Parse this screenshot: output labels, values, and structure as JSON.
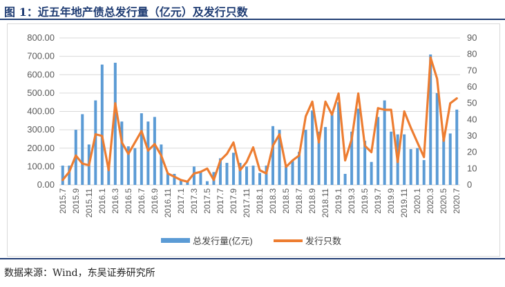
{
  "figure": {
    "title": "图 1：近五年地产债总发行量（亿元）及发行只数",
    "source": "数据来源：Wind，东吴证券研究所"
  },
  "colors": {
    "bar": "#5b9bd5",
    "line": "#ed7d31",
    "grid": "#d9d9d9",
    "axis_text": "#595959"
  },
  "chart_data": {
    "type": "bar+line",
    "title": "近五年地产债总发行量（亿元）及发行只数",
    "categories": [
      "2015.7",
      "2015.8",
      "2015.9",
      "2015.10",
      "2015.11",
      "2015.12",
      "2016.1",
      "2016.2",
      "2016.3",
      "2016.4",
      "2016.5",
      "2016.6",
      "2016.7",
      "2016.8",
      "2016.9",
      "2016.10",
      "2016.11",
      "2016.12",
      "2017.1",
      "2017.2",
      "2017.3",
      "2017.4",
      "2017.5",
      "2017.6",
      "2017.7",
      "2017.8",
      "2017.9",
      "2017.10",
      "2017.11",
      "2017.12",
      "2018.1",
      "2018.2",
      "2018.3",
      "2018.4",
      "2018.5",
      "2018.6",
      "2018.7",
      "2018.8",
      "2018.9",
      "2018.10",
      "2018.11",
      "2018.12",
      "2019.1",
      "2019.2",
      "2019.3",
      "2019.4",
      "2019.5",
      "2019.6",
      "2019.7",
      "2019.8",
      "2019.9",
      "2019.10",
      "2019.11",
      "2019.12",
      "2020.1",
      "2020.2",
      "2020.3",
      "2020.4",
      "2020.5",
      "2020.6",
      "2020.7"
    ],
    "x_tick_labels": [
      "2015.7",
      "2015.9",
      "2015.11",
      "2016.1",
      "2016.3",
      "2016.5",
      "2016.7",
      "2016.9",
      "2016.11",
      "2017.1",
      "2017.3",
      "2017.5",
      "2017.7",
      "2017.9",
      "2017.11",
      "2018.1",
      "2018.3",
      "2018.5",
      "2018.7",
      "2018.9",
      "2018.11",
      "2019.1",
      "2019.3",
      "2019.5",
      "2019.7",
      "2019.9",
      "2019.11",
      "2020.1",
      "2020.3",
      "2020.5",
      "2020.7"
    ],
    "series": [
      {
        "name": "总发行量(亿元)",
        "type": "bar",
        "axis": "left",
        "values": [
          105,
          105,
          300,
          385,
          220,
          460,
          655,
          115,
          665,
          345,
          210,
          200,
          390,
          345,
          370,
          220,
          65,
          60,
          30,
          20,
          100,
          70,
          20,
          70,
          145,
          120,
          175,
          120,
          100,
          105,
          65,
          105,
          320,
          300,
          105,
          130,
          180,
          300,
          405,
          290,
          315,
          390,
          450,
          60,
          290,
          415,
          240,
          125,
          370,
          460,
          290,
          275,
          275,
          195,
          200,
          135,
          710,
          500,
          250,
          280,
          410
        ]
      },
      {
        "name": "发行只数",
        "type": "line",
        "axis": "right",
        "values": [
          3,
          8,
          18,
          13,
          12,
          31,
          30,
          9,
          50,
          26,
          19,
          26,
          33,
          21,
          25,
          18,
          7,
          5,
          3,
          2,
          7,
          8,
          10,
          3,
          15,
          19,
          26,
          9,
          14,
          23,
          9,
          7,
          24,
          31,
          11,
          15,
          18,
          42,
          51,
          26,
          51,
          43,
          56,
          15,
          28,
          56,
          24,
          20,
          47,
          46,
          46,
          14,
          45,
          35,
          26,
          17,
          78,
          65,
          27,
          50,
          53
        ]
      }
    ],
    "left_axis": {
      "min": 0,
      "max": 800,
      "tick_labels": [
        "0.00",
        "100.00",
        "200.00",
        "300.00",
        "400.00",
        "500.00",
        "600.00",
        "700.00",
        "800.00"
      ]
    },
    "right_axis": {
      "min": 0,
      "max": 90,
      "tick_labels": [
        "0",
        "10",
        "20",
        "30",
        "40",
        "50",
        "60",
        "70",
        "80",
        "90"
      ]
    },
    "legend": [
      "总发行量(亿元)",
      "发行只数"
    ],
    "legend_position": "bottom",
    "grid": true
  }
}
